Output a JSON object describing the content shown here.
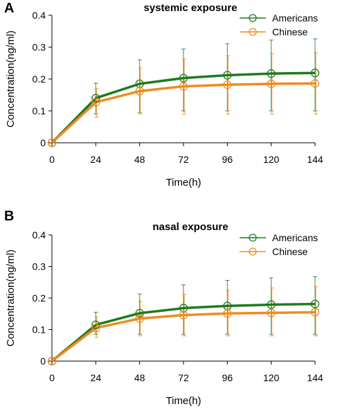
{
  "chart_data": [
    {
      "panel": "A",
      "type": "line",
      "title": "systemic exposure",
      "xlabel": "Time(h)",
      "ylabel": "Concentration(ng/ml)",
      "x": [
        0,
        24,
        48,
        72,
        96,
        120,
        144
      ],
      "xticks": [
        "0",
        "24",
        "48",
        "72",
        "96",
        "120",
        "144"
      ],
      "yticks": [
        "0",
        "0.1",
        "0.2",
        "0.3",
        "0.4"
      ],
      "xlim": [
        0,
        144
      ],
      "ylim": [
        0,
        0.4
      ],
      "legend_position": "top-right",
      "grid": false,
      "series": [
        {
          "name": "Americans",
          "color": "#1f7a1f",
          "values": [
            0,
            0.14,
            0.185,
            0.203,
            0.212,
            0.217,
            0.219
          ],
          "err_upper": [
            0,
            0.187,
            0.26,
            0.294,
            0.311,
            0.322,
            0.326
          ],
          "err_lower": [
            0,
            0.09,
            0.095,
            0.1,
            0.1,
            0.1,
            0.1
          ]
        },
        {
          "name": "Chinese",
          "color": "#f28a1e",
          "values": [
            0,
            0.127,
            0.162,
            0.177,
            0.182,
            0.185,
            0.186
          ],
          "err_upper": [
            0,
            0.17,
            0.235,
            0.263,
            0.273,
            0.28,
            0.283
          ],
          "err_lower": [
            0,
            0.08,
            0.09,
            0.09,
            0.09,
            0.09,
            0.09
          ]
        }
      ]
    },
    {
      "panel": "B",
      "type": "line",
      "title": "nasal exposure",
      "xlabel": "Time(h)",
      "ylabel": "Concentration(ng/ml)",
      "x": [
        0,
        24,
        48,
        72,
        96,
        120,
        144
      ],
      "xticks": [
        "0",
        "24",
        "48",
        "72",
        "96",
        "120",
        "144"
      ],
      "yticks": [
        "0",
        "0.1",
        "0.2",
        "0.3",
        "0.4"
      ],
      "xlim": [
        0,
        144
      ],
      "ylim": [
        0,
        0.4
      ],
      "legend_position": "top-right",
      "grid": false,
      "series": [
        {
          "name": "Americans",
          "color": "#1f7a1f",
          "values": [
            0,
            0.115,
            0.152,
            0.168,
            0.175,
            0.179,
            0.181
          ],
          "err_upper": [
            0,
            0.155,
            0.213,
            0.242,
            0.256,
            0.264,
            0.268
          ],
          "err_lower": [
            0,
            0.085,
            0.085,
            0.085,
            0.085,
            0.085,
            0.085
          ]
        },
        {
          "name": "Chinese",
          "color": "#f28a1e",
          "values": [
            0,
            0.105,
            0.135,
            0.146,
            0.151,
            0.153,
            0.155
          ],
          "err_upper": [
            0,
            0.14,
            0.19,
            0.212,
            0.225,
            0.232,
            0.236
          ],
          "err_lower": [
            0,
            0.075,
            0.08,
            0.08,
            0.08,
            0.08,
            0.08
          ]
        }
      ]
    }
  ]
}
